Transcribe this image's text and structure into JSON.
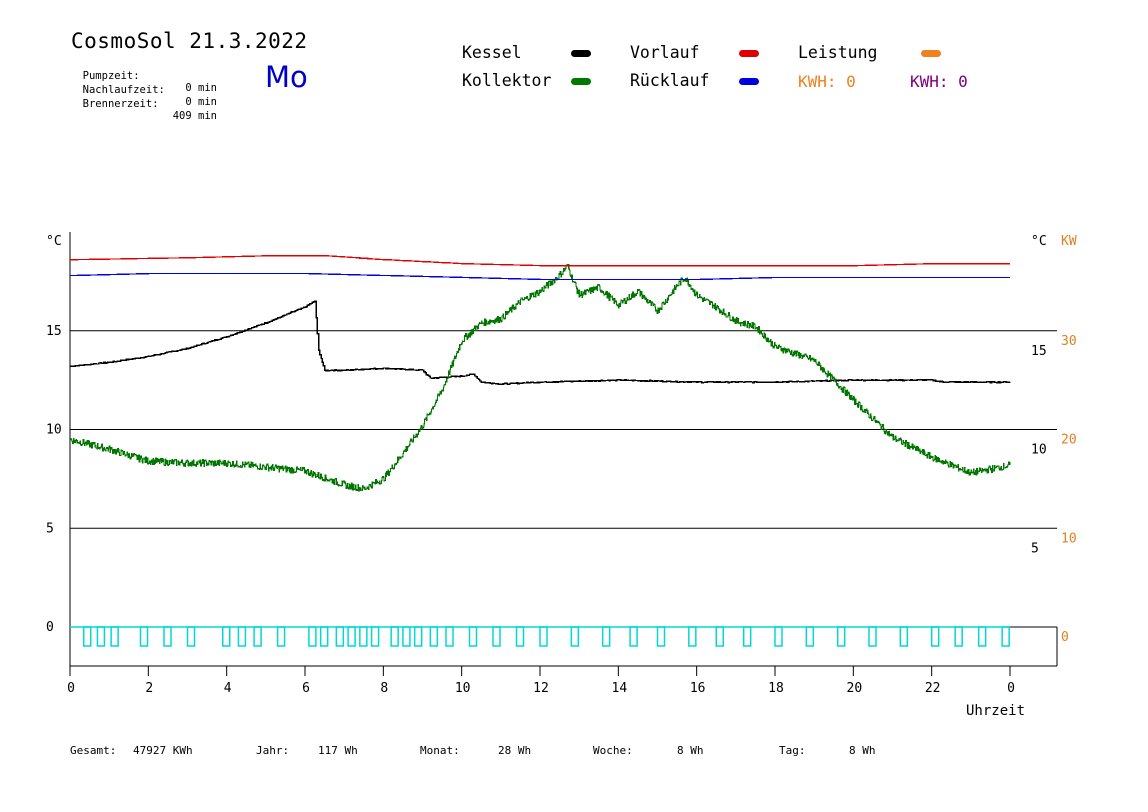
{
  "header": {
    "title": "CosmoSol 21.3.2022",
    "day": "Mo",
    "stats": [
      {
        "label": "Pumpzeit:",
        "value": "0 min"
      },
      {
        "label": "Nachlaufzeit:",
        "value": "0 min"
      },
      {
        "label": "Brennerzeit:",
        "value": "409 min"
      }
    ]
  },
  "legend": {
    "kessel": {
      "label": "Kessel",
      "color": "#000000"
    },
    "kollektor": {
      "label": "Kollektor",
      "color": "#007800"
    },
    "vorlauf": {
      "label": "Vorlauf",
      "color": "#e00000"
    },
    "ruecklauf": {
      "label": "Rücklauf",
      "color": "#0000e0"
    },
    "leistung": {
      "label": "Leistung",
      "color": "#f08020"
    },
    "kwh_orange": "KWH: 0",
    "kwh_purple": "KWH: 0",
    "kwh_purple_color": "#800080"
  },
  "axes": {
    "left_unit": "°C",
    "right_unit_c": "°C",
    "right_unit_kw": "KW",
    "x_label": "Uhrzeit"
  },
  "footer": {
    "gesamt_label": "Gesamt:",
    "gesamt_value": "47927 KWh",
    "jahr_label": "Jahr:",
    "jahr_value": "117 Wh",
    "monat_label": "Monat:",
    "monat_value": "28 Wh",
    "woche_label": "Woche:",
    "woche_value": "8 Wh",
    "tag_label": "Tag:",
    "tag_value": "8 Wh"
  },
  "chart_data": {
    "type": "line",
    "xlabel": "Uhrzeit",
    "x_ticks": [
      "0",
      "2",
      "4",
      "6",
      "8",
      "10",
      "12",
      "14",
      "16",
      "18",
      "20",
      "22",
      "0"
    ],
    "xlim": [
      0,
      24
    ],
    "left_y_ticks": [
      0,
      5,
      10,
      15
    ],
    "ylim_left": [
      -1.5,
      20
    ],
    "right_c_ticks": [
      5,
      10,
      15
    ],
    "right_kw_ticks": [
      0,
      10,
      20,
      30
    ],
    "right_kw_color": "#e08020",
    "grid": "horizontal",
    "series": [
      {
        "name": "Kessel",
        "color": "#000000",
        "x": [
          0,
          1,
          2,
          3,
          4,
          5,
          6,
          6.25,
          6.35,
          6.5,
          7,
          8,
          9,
          9.2,
          10,
          10.3,
          10.5,
          11,
          12,
          14,
          16,
          18,
          20,
          22,
          22.3,
          24
        ],
        "y": [
          13.2,
          13.4,
          13.7,
          14.1,
          14.7,
          15.4,
          16.2,
          16.5,
          14.0,
          13.0,
          13.0,
          13.1,
          13.0,
          12.6,
          12.7,
          12.8,
          12.4,
          12.3,
          12.4,
          12.5,
          12.4,
          12.4,
          12.5,
          12.5,
          12.4,
          12.4
        ]
      },
      {
        "name": "Kollektor",
        "color": "#007800",
        "x": [
          0,
          1,
          2,
          3,
          4,
          5,
          6,
          7,
          7.5,
          8,
          8.5,
          9,
          9.5,
          10,
          10.5,
          11,
          11.5,
          12,
          12.5,
          12.7,
          13,
          13.5,
          14,
          14.5,
          15,
          15.5,
          15.7,
          16,
          16.5,
          17,
          17.5,
          18,
          19,
          20,
          21,
          22,
          23,
          24
        ],
        "y": [
          9.5,
          9.0,
          8.4,
          8.3,
          8.3,
          8.1,
          7.9,
          7.2,
          7.0,
          7.5,
          8.8,
          10.2,
          12.0,
          14.5,
          15.4,
          15.6,
          16.5,
          17.0,
          17.8,
          18.3,
          16.8,
          17.2,
          16.3,
          17.0,
          16.0,
          17.3,
          17.7,
          16.8,
          16.2,
          15.5,
          15.2,
          14.2,
          13.5,
          11.5,
          9.6,
          8.6,
          7.8,
          8.2
        ]
      },
      {
        "name": "Vorlauf",
        "color": "#e00000",
        "x": [
          0,
          3,
          5,
          6.5,
          8,
          10,
          12,
          14,
          16,
          18,
          20,
          22,
          24
        ],
        "y": [
          18.6,
          18.7,
          18.8,
          18.8,
          18.6,
          18.4,
          18.3,
          18.3,
          18.3,
          18.3,
          18.3,
          18.4,
          18.4
        ]
      },
      {
        "name": "Rücklauf",
        "color": "#0000e0",
        "x": [
          0,
          2,
          4,
          6,
          8,
          10,
          12,
          14,
          16,
          18,
          20,
          22,
          24
        ],
        "y": [
          17.8,
          17.9,
          17.9,
          17.9,
          17.8,
          17.7,
          17.6,
          17.6,
          17.6,
          17.7,
          17.7,
          17.7,
          17.7
        ]
      },
      {
        "name": "Pumpe",
        "color": "#00d8d8",
        "pulse_hours": [
          0.35,
          0.7,
          1.05,
          1.8,
          2.4,
          3.0,
          3.9,
          4.3,
          4.7,
          5.3,
          6.1,
          6.4,
          6.8,
          7.1,
          7.4,
          7.7,
          8.2,
          8.5,
          8.8,
          9.2,
          9.6,
          10.2,
          10.8,
          11.4,
          12.0,
          12.8,
          13.6,
          14.3,
          15.0,
          15.8,
          16.5,
          17.2,
          18.0,
          18.8,
          19.6,
          20.4,
          21.2,
          22.0,
          22.6,
          23.2,
          23.8
        ]
      }
    ]
  }
}
